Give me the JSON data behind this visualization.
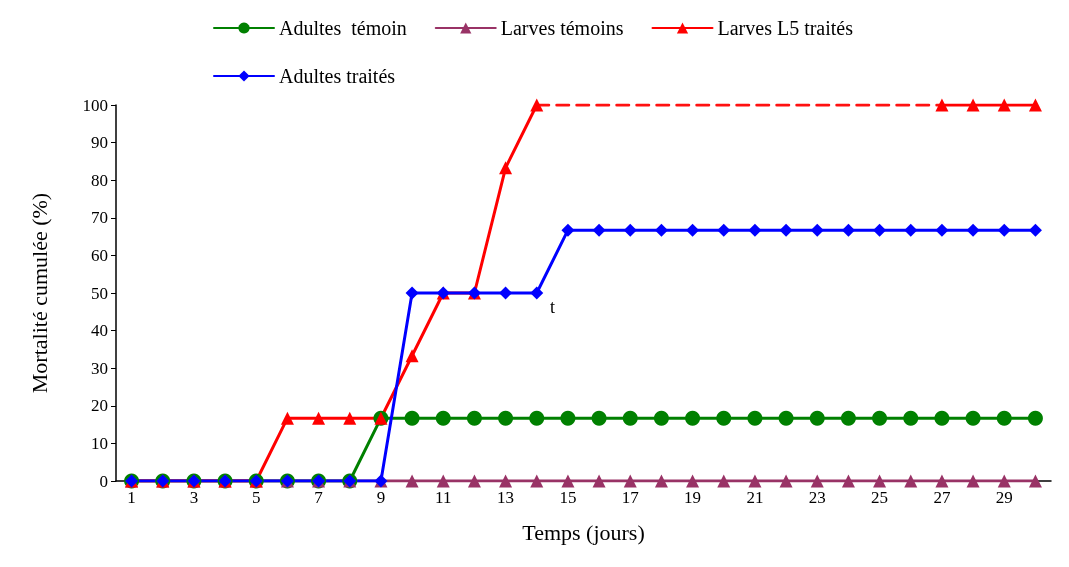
{
  "chart_data": {
    "type": "line",
    "xlabel": "Temps (jours)",
    "ylabel": "Mortalité cumulée (%)",
    "x": [
      1,
      2,
      3,
      4,
      5,
      6,
      7,
      8,
      9,
      10,
      11,
      12,
      13,
      14,
      15,
      16,
      17,
      18,
      19,
      20,
      21,
      22,
      23,
      24,
      25,
      26,
      27,
      28,
      29,
      30
    ],
    "xlim": [
      0.5,
      30.5
    ],
    "xticks": [
      1,
      3,
      5,
      7,
      9,
      11,
      13,
      15,
      17,
      19,
      21,
      23,
      25,
      27,
      29
    ],
    "ylim": [
      0,
      100
    ],
    "yticks": [
      0,
      10,
      20,
      30,
      40,
      50,
      60,
      70,
      80,
      90,
      100
    ],
    "grid": false,
    "legend": "top",
    "line_style": "solid",
    "series": [
      {
        "name": "Adultes  témoin",
        "color": "#008000",
        "marker": "circle",
        "values": [
          0,
          0,
          0,
          0,
          0,
          0,
          0,
          0,
          16.7,
          16.7,
          16.7,
          16.7,
          16.7,
          16.7,
          16.7,
          16.7,
          16.7,
          16.7,
          16.7,
          16.7,
          16.7,
          16.7,
          16.7,
          16.7,
          16.7,
          16.7,
          16.7,
          16.7,
          16.7,
          16.7
        ]
      },
      {
        "name": "Larves témoins",
        "color": "#993366",
        "marker": "triangle",
        "values": [
          0,
          0,
          0,
          0,
          0,
          0,
          0,
          0,
          0,
          0,
          0,
          0,
          0,
          0,
          0,
          0,
          0,
          0,
          0,
          0,
          0,
          0,
          0,
          0,
          0,
          0,
          0,
          0,
          0,
          0
        ]
      },
      {
        "name": "Larves L5 traités",
        "color": "#ff0000",
        "marker": "triangle",
        "values": [
          0,
          0,
          0,
          0,
          0,
          16.7,
          16.7,
          16.7,
          16.7,
          33.3,
          50,
          50,
          83.3,
          100,
          null,
          null,
          null,
          null,
          null,
          null,
          null,
          null,
          null,
          null,
          null,
          null,
          100,
          100,
          100,
          100
        ]
      },
      {
        "name": "Adultes traités",
        "color": "#0000ff",
        "marker": "diamond",
        "values": [
          0,
          0,
          0,
          0,
          0,
          0,
          0,
          0,
          0,
          50,
          50,
          50,
          50,
          50,
          66.7,
          66.7,
          66.7,
          66.7,
          66.7,
          66.7,
          66.7,
          66.7,
          66.7,
          66.7,
          66.7,
          66.7,
          66.7,
          66.7,
          66.7,
          66.7
        ]
      },
      {
        "color": "#ff1010",
        "marker": "none",
        "line_style": "dashed",
        "x": [
          14,
          27
        ],
        "values": [
          100,
          100
        ]
      }
    ],
    "annotations": [
      "t"
    ]
  }
}
